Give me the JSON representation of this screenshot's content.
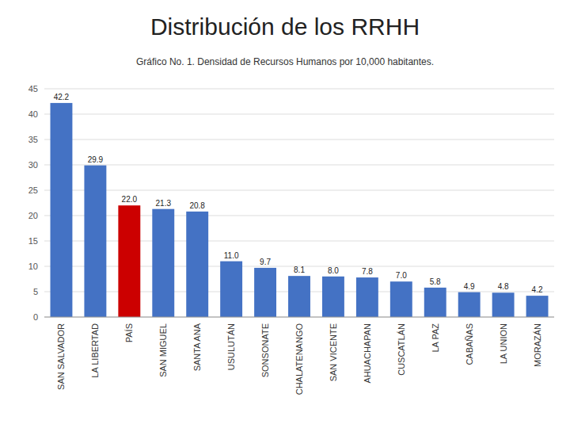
{
  "chart_data": {
    "type": "bar",
    "title": "Distribución de los RRHH",
    "subtitle": "Gráfico No. 1. Densidad de Recursos Humanos por 10,000 habitantes.",
    "categories": [
      "SAN SALVADOR",
      "LA LIBERTAD",
      "PAÍS",
      "SAN MIGUEL",
      "SANTA ANA",
      "USULUTÁN",
      "SONSONATE",
      "CHALATENANGO",
      "SAN VICENTE",
      "AHUACHAPAN",
      "CUSCATLÁN",
      "LA PAZ",
      "CABAÑAS",
      "LA UNION",
      "MORAZÁN"
    ],
    "values": [
      42.2,
      29.9,
      22.0,
      21.3,
      20.8,
      11.0,
      9.7,
      8.1,
      8.0,
      7.8,
      7.0,
      5.8,
      4.9,
      4.8,
      4.2
    ],
    "value_labels": [
      "42.2",
      "29.9",
      "22.0",
      "21.3",
      "20.8",
      "11.0",
      "9.7",
      "8.1",
      "8.0",
      "7.8",
      "7.0",
      "5.8",
      "4.9",
      "4.8",
      "4.2"
    ],
    "colors": [
      "#4472C4",
      "#4472C4",
      "#CC0000",
      "#4472C4",
      "#4472C4",
      "#4472C4",
      "#4472C4",
      "#4472C4",
      "#4472C4",
      "#4472C4",
      "#4472C4",
      "#4472C4",
      "#4472C4",
      "#4472C4",
      "#4472C4"
    ],
    "ylim": [
      0,
      45
    ],
    "yticks": [
      0,
      5,
      10,
      15,
      20,
      25,
      30,
      35,
      40,
      45
    ],
    "grid": true,
    "data_labels": true
  }
}
